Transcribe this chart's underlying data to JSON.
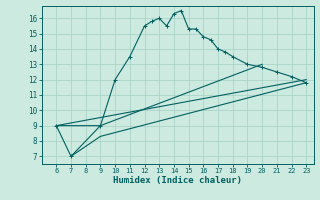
{
  "title": "",
  "xlabel": "Humidex (Indice chaleur)",
  "bg_color": "#cceae0",
  "grid_color": "#aad4c8",
  "line_color": "#006060",
  "xlim": [
    5.0,
    23.5
  ],
  "ylim": [
    6.5,
    16.8
  ],
  "xticks": [
    6,
    7,
    8,
    9,
    10,
    11,
    12,
    13,
    14,
    15,
    16,
    17,
    18,
    19,
    20,
    21,
    22,
    23
  ],
  "yticks": [
    7,
    8,
    9,
    10,
    11,
    12,
    13,
    14,
    15,
    16
  ],
  "main_line": {
    "x": [
      6,
      7,
      9,
      10,
      11,
      12,
      12.5,
      13,
      13.5,
      14,
      14.5,
      15,
      15.5,
      16,
      16.5,
      17,
      17.5,
      18,
      19,
      20,
      21,
      22,
      23
    ],
    "y": [
      9.0,
      7.0,
      9.0,
      12.0,
      13.5,
      15.5,
      15.8,
      16.0,
      15.5,
      16.3,
      16.5,
      15.3,
      15.3,
      14.8,
      14.6,
      14.0,
      13.8,
      13.5,
      13.0,
      12.8,
      12.5,
      12.2,
      11.8
    ]
  },
  "line_upper": {
    "x": [
      6,
      9,
      20
    ],
    "y": [
      9.0,
      9.0,
      13.0
    ]
  },
  "line_lower1": {
    "x": [
      6,
      23
    ],
    "y": [
      9.0,
      12.0
    ]
  },
  "line_lower2": {
    "x": [
      7,
      9,
      23
    ],
    "y": [
      7.0,
      8.3,
      11.8
    ]
  }
}
